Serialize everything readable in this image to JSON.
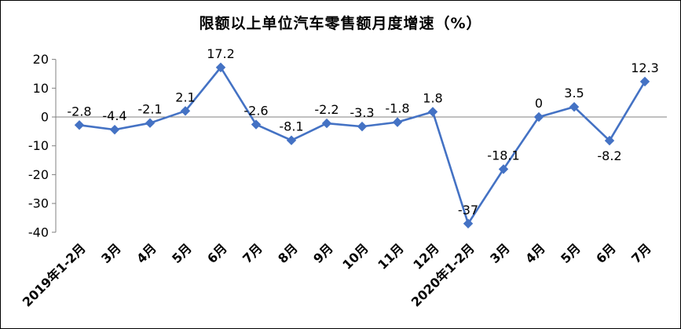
{
  "chart_data": {
    "type": "line",
    "title": "限额以上单位汽车零售额月度增速（%）",
    "categories": [
      "2019年1-2月",
      "3月",
      "4月",
      "5月",
      "6月",
      "7月",
      "8月",
      "9月",
      "10月",
      "11月",
      "12月",
      "2020年1-2月",
      "3月",
      "4月",
      "5月",
      "6月",
      "7月"
    ],
    "values": [
      -2.8,
      -4.4,
      -2.1,
      2.1,
      17.2,
      -2.6,
      -8.1,
      -2.2,
      -3.3,
      -1.8,
      1.8,
      -37,
      -18.1,
      0,
      3.5,
      -8.2,
      12.3
    ],
    "labels": [
      "-2.8",
      "-4.4",
      "-2.1",
      "2.1",
      "17.2",
      "-2.6",
      "-8.1",
      "-2.2",
      "-3.3",
      "-1.8",
      "1.8",
      "-37",
      "-18.1",
      "0",
      "3.5",
      "-8.2",
      "12.3"
    ],
    "label_positions": [
      "above",
      "above",
      "above",
      "above",
      "above",
      "above",
      "above",
      "above",
      "above",
      "above",
      "above",
      "above",
      "above",
      "above",
      "above",
      "below",
      "above"
    ],
    "yticks": [
      20,
      10,
      0,
      -10,
      -20,
      -30,
      -40
    ],
    "ylim": [
      -40,
      20
    ],
    "xlabel": "",
    "ylabel": "",
    "grid": false,
    "legend": "none",
    "marker": "diamond",
    "colors": {
      "line": "#4472C4",
      "marker": "#4472C4",
      "axis": "#808080",
      "text": "#000000",
      "background": "#FFFFFF",
      "border": "#000000"
    }
  }
}
